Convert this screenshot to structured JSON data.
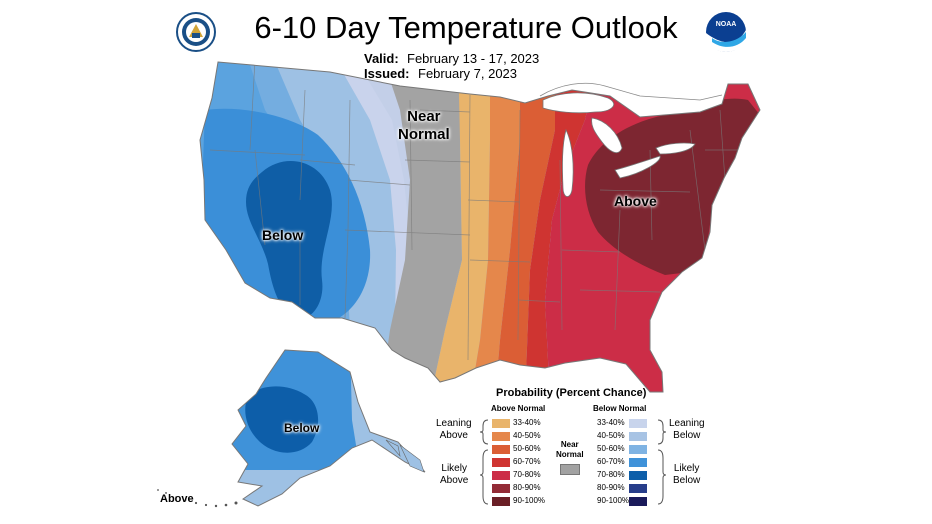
{
  "header": {
    "title": "6-10 Day Temperature Outlook",
    "valid_label": "Valid:",
    "valid_value": "February 13 - 17, 2023",
    "issued_label": "Issued:",
    "issued_value": "February 7, 2023"
  },
  "logos": {
    "left": "dept-of-commerce-seal-icon",
    "right": "noaa-logo-icon",
    "right_text": "NOAA"
  },
  "map_labels": {
    "near_line1": "Near",
    "near_line2": "Normal",
    "above": "Above",
    "below": "Below",
    "alaska_below": "Below",
    "alaska_above": "Above"
  },
  "legend": {
    "title": "Probability (Percent Chance)",
    "above_header": "Above Normal",
    "below_header": "Below Normal",
    "near_line1": "Near",
    "near_line2": "Normal",
    "leaning_above_1": "Leaning",
    "leaning_above_2": "Above",
    "likely_above_1": "Likely",
    "likely_above_2": "Above",
    "leaning_below_1": "Leaning",
    "leaning_below_2": "Below",
    "likely_below_1": "Likely",
    "likely_below_2": "Below",
    "above_ranges": [
      "33-40%",
      "40-50%",
      "50-60%",
      "60-70%",
      "70-80%",
      "80-90%",
      "90-100%"
    ],
    "above_colors": [
      "#e9b46b",
      "#e5874b",
      "#db5e35",
      "#cf3431",
      "#cc2d47",
      "#932b36",
      "#6a1f26"
    ],
    "below_ranges": [
      "33-40%",
      "40-50%",
      "50-60%",
      "60-70%",
      "70-80%",
      "80-90%",
      "90-100%"
    ],
    "below_colors": [
      "#c8d4ec",
      "#a7c3e4",
      "#7fb3e3",
      "#3f92d9",
      "#0d5ea9",
      "#273d8a",
      "#1a1a5a"
    ],
    "near_color": "#a2a2a2"
  },
  "map_colors": {
    "white": "#ffffff",
    "near_normal": "#a3a3a3",
    "state_line": "#7a7a7a"
  }
}
